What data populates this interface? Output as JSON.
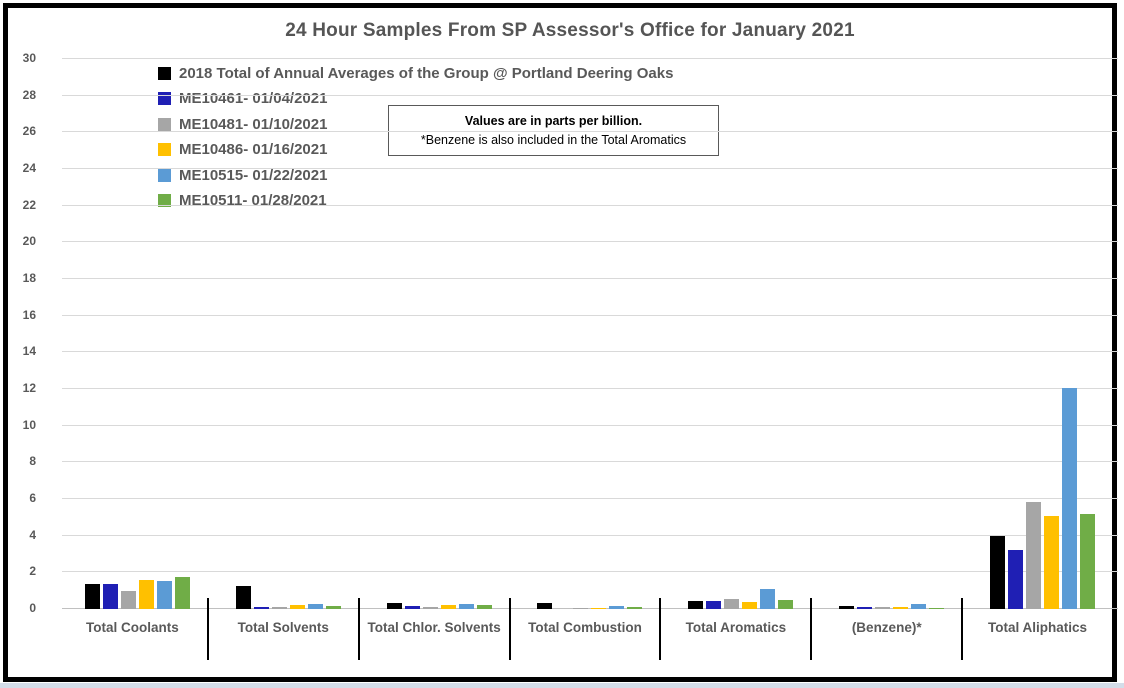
{
  "chart_data": {
    "type": "bar",
    "title": "24 Hour Samples From SP Assessor's Office for January 2021",
    "ylabel": "",
    "xlabel": "",
    "ylim": [
      0,
      30
    ],
    "ytick_step": 2,
    "grid": true,
    "legend_position": "top-left",
    "units_note": {
      "line1": "Values are in parts per billion.",
      "line2": "*Benzene is also included in the Total Aromatics"
    },
    "categories": [
      "Total Coolants",
      "Total Solvents",
      "Total Chlor. Solvents",
      "Total Combustion",
      "Total Aromatics",
      "(Benzene)*",
      "Total Aliphatics"
    ],
    "series": [
      {
        "name": "2018 Total of Annual Averages of the Group @ Portland Deering Oaks",
        "color": "#000000",
        "values": [
          1.35,
          1.25,
          0.35,
          0.3,
          0.45,
          0.15,
          4.0
        ]
      },
      {
        "name": "ME10461- 01/04/2021",
        "color": "#1F1FB4",
        "values": [
          1.35,
          0.1,
          0.15,
          0,
          0.45,
          0.1,
          3.2
        ]
      },
      {
        "name": "ME10481- 01/10/2021",
        "color": "#A6A6A6",
        "values": [
          1.0,
          0.1,
          0.1,
          0.05,
          0.55,
          0.1,
          5.85
        ]
      },
      {
        "name": "ME10486- 01/16/2021",
        "color": "#FFC000",
        "values": [
          1.6,
          0.2,
          0.2,
          0.05,
          0.4,
          0.1,
          5.05
        ]
      },
      {
        "name": "ME10515- 01/22/2021",
        "color": "#5B9BD5",
        "values": [
          1.5,
          0.25,
          0.25,
          0.15,
          1.1,
          0.25,
          12.05
        ]
      },
      {
        "name": "ME10511- 01/28/2021",
        "color": "#70AD47",
        "values": [
          1.75,
          0.15,
          0.2,
          0.1,
          0.5,
          0.05,
          5.2
        ]
      }
    ]
  },
  "colors": {
    "grid": "#d9d9d9",
    "axis_text": "#595959",
    "title_text": "#555555",
    "frame_border": "#000000"
  }
}
